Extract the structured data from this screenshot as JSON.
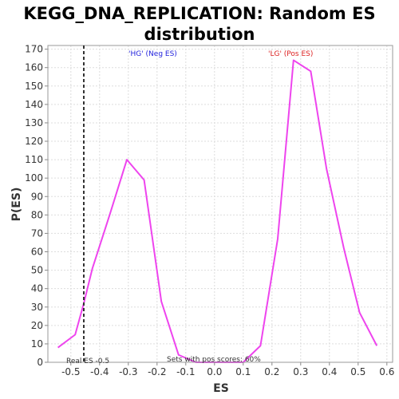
{
  "chart_data": {
    "type": "line",
    "title_line1": "KEGG_DNA_REPLICATION: Random ES",
    "title_line2": "distribution",
    "xlabel": "ES",
    "ylabel": "P(ES)",
    "xlim": [
      -0.58,
      0.62
    ],
    "ylim": [
      0,
      172
    ],
    "x_ticks": [
      -0.5,
      -0.4,
      -0.3,
      -0.2,
      -0.1,
      0.0,
      0.1,
      0.2,
      0.3,
      0.4,
      0.5,
      0.6
    ],
    "x_tick_labels": [
      "-0.5",
      "-0.4",
      "-0.3",
      "-0.2",
      "-0.1",
      "0.0",
      "0.1",
      "0.2",
      "0.3",
      "0.4",
      "0.5",
      "0.6"
    ],
    "y_ticks": [
      0,
      10,
      20,
      30,
      40,
      50,
      60,
      70,
      80,
      90,
      100,
      110,
      120,
      130,
      140,
      150,
      160,
      170
    ],
    "y_tick_labels": [
      "0",
      "10",
      "20",
      "30",
      "40",
      "50",
      "60",
      "70",
      "80",
      "90",
      "100",
      "110",
      "120",
      "130",
      "140",
      "150",
      "160",
      "170"
    ],
    "grid": true,
    "series": [
      {
        "color": "#ee44ee",
        "x": [
          -0.545,
          -0.485,
          -0.455,
          -0.425,
          -0.365,
          -0.305,
          -0.245,
          -0.185,
          -0.125,
          -0.065,
          0.0,
          0.1,
          0.16,
          0.22,
          0.275,
          0.335,
          0.39,
          0.45,
          0.505,
          0.565
        ],
        "y": [
          8,
          15,
          32,
          51,
          80,
          110,
          99,
          33,
          4,
          0,
          0,
          0,
          9,
          67,
          164,
          158,
          105,
          62,
          27,
          9
        ]
      }
    ],
    "real_es_line": {
      "x": -0.455,
      "color": "#333333"
    },
    "annotations": {
      "neg_label": "'HG' (Neg ES)",
      "neg_color": "#2222dd",
      "pos_label": "'LG' (Pos ES)",
      "pos_color": "#dd2222",
      "real_es": "Real ES -0.5",
      "pos_scores": "Sets with pos scores: 60%"
    }
  }
}
